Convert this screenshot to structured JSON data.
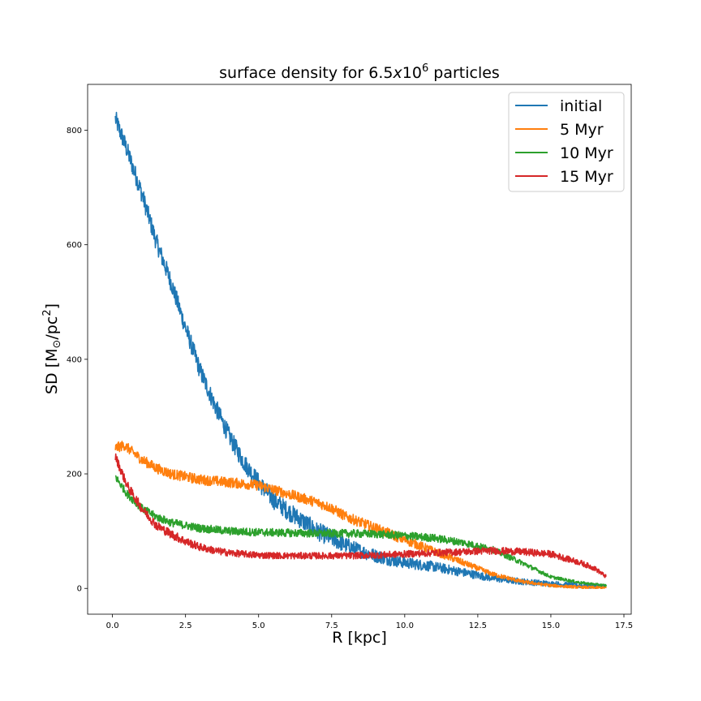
{
  "chart_data": {
    "type": "line",
    "title_parts": {
      "prefix": "surface density for 6.5",
      "italic_x": "x",
      "base": "10",
      "exponent": "6",
      "suffix": " particles"
    },
    "xlabel": "R [kpc]",
    "ylabel_parts": {
      "prefix": "SD [M",
      "odot": "⊙",
      "middle": "/pc",
      "exponent": "2",
      "suffix": "]"
    },
    "xlim": [
      -0.85,
      17.75
    ],
    "ylim": [
      -45,
      880
    ],
    "xticks": [
      0.0,
      2.5,
      5.0,
      7.5,
      10.0,
      12.5,
      15.0,
      17.5
    ],
    "xtick_labels": [
      "0.0",
      "2.5",
      "5.0",
      "7.5",
      "10.0",
      "12.5",
      "15.0",
      "17.5"
    ],
    "yticks": [
      0,
      200,
      400,
      600,
      800
    ],
    "ytick_labels": [
      "0",
      "200",
      "400",
      "600",
      "800"
    ],
    "grid": false,
    "legend_position": "top-right",
    "series": [
      {
        "name": "initial",
        "color": "#1f77b4",
        "noise": 16,
        "x": [
          0.1,
          0.5,
          1.0,
          1.5,
          2.0,
          2.5,
          3.0,
          3.5,
          4.0,
          4.5,
          5.0,
          5.5,
          6.0,
          6.5,
          7.0,
          7.5,
          8.0,
          8.5,
          9.0,
          9.5,
          10.0,
          11.0,
          12.0,
          13.0,
          14.0,
          15.0,
          16.0,
          16.9
        ],
        "y": [
          820,
          765,
          690,
          605,
          535,
          455,
          380,
          320,
          265,
          220,
          185,
          155,
          135,
          118,
          100,
          88,
          75,
          65,
          57,
          50,
          45,
          38,
          28,
          18,
          12,
          8,
          5,
          3
        ]
      },
      {
        "name": "5 Myr",
        "color": "#ff7f0e",
        "noise": 9,
        "x": [
          0.1,
          0.4,
          1.0,
          1.5,
          2.0,
          2.5,
          3.0,
          4.0,
          5.0,
          6.0,
          7.0,
          7.5,
          8.0,
          9.0,
          10.0,
          11.0,
          12.0,
          13.0,
          14.0,
          15.0,
          16.0,
          16.9
        ],
        "y": [
          245,
          250,
          225,
          210,
          200,
          195,
          190,
          185,
          180,
          165,
          150,
          140,
          125,
          105,
          85,
          65,
          45,
          25,
          12,
          5,
          2,
          1
        ]
      },
      {
        "name": "10 Myr",
        "color": "#2ca02c",
        "noise": 7,
        "x": [
          0.1,
          0.5,
          1.0,
          1.5,
          2.0,
          3.0,
          4.0,
          5.0,
          6.0,
          7.0,
          8.0,
          9.0,
          10.0,
          11.0,
          12.0,
          13.0,
          14.0,
          15.0,
          16.0,
          16.9
        ],
        "y": [
          195,
          165,
          140,
          125,
          115,
          105,
          100,
          98,
          97,
          96,
          96,
          95,
          92,
          88,
          80,
          68,
          45,
          20,
          10,
          5
        ]
      },
      {
        "name": "15 Myr",
        "color": "#d62728",
        "noise": 8,
        "x": [
          0.1,
          0.5,
          1.0,
          1.5,
          2.0,
          2.5,
          3.0,
          3.5,
          4.0,
          5.0,
          6.0,
          7.0,
          8.0,
          9.0,
          10.0,
          11.0,
          12.0,
          13.0,
          14.0,
          15.0,
          16.0,
          16.5,
          16.9
        ],
        "y": [
          230,
          180,
          140,
          110,
          95,
          82,
          72,
          66,
          62,
          58,
          57,
          57,
          57,
          58,
          60,
          62,
          64,
          66,
          64,
          60,
          45,
          35,
          20
        ]
      }
    ]
  }
}
